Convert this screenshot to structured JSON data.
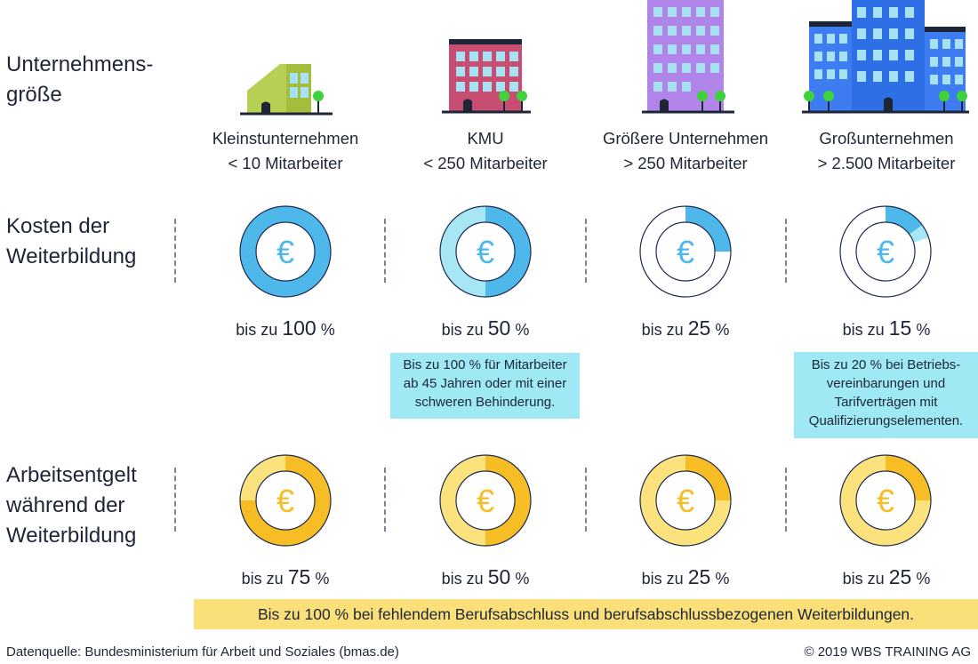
{
  "labels": {
    "size": "Unternehmens-\ngröße",
    "costs": "Kosten der\nWeiterbildung",
    "wage": "Arbeitsentgelt\nwährend der\nWeiterbildung"
  },
  "columns": [
    {
      "title": "Kleinstunternehmen",
      "subtitle": "< 10 Mitarbeiter",
      "icon": "small-building-icon"
    },
    {
      "title": "KMU",
      "subtitle": "< 250 Mitarbeiter",
      "icon": "medium-building-icon"
    },
    {
      "title": "Größere Unternehmen",
      "subtitle": "> 250 Mitarbeiter",
      "icon": "large-building-icon"
    },
    {
      "title": "Großunternehmen",
      "subtitle": "> 2.500 Mitarbeiter",
      "icon": "campus-buildings-icon"
    }
  ],
  "chart_data": [
    {
      "type": "pie",
      "title": "Kosten der Weiterbildung",
      "categories": [
        "Kleinstunternehmen",
        "KMU",
        "Größere Unternehmen",
        "Großunternehmen"
      ],
      "values": [
        100,
        50,
        25,
        15
      ],
      "extended_values": [
        100,
        100,
        25,
        20
      ],
      "unit": "%",
      "colors": {
        "fill": "#4fb8ea",
        "extended": "#a6e6f5",
        "empty": "#ffffff",
        "outline": "#1d2a50"
      }
    },
    {
      "type": "pie",
      "title": "Arbeitsentgelt während der Weiterbildung",
      "categories": [
        "Kleinstunternehmen",
        "KMU",
        "Größere Unternehmen",
        "Großunternehmen"
      ],
      "values": [
        75,
        50,
        25,
        25
      ],
      "extended_values": [
        100,
        100,
        100,
        100
      ],
      "unit": "%",
      "colors": {
        "fill": "#f6bd25",
        "extended": "#fbe27d",
        "outline": "#1d2a50"
      }
    }
  ],
  "costs_labels": [
    {
      "prefix": "bis zu",
      "value": "100",
      "unit": "%"
    },
    {
      "prefix": "bis zu",
      "value": "50",
      "unit": "%"
    },
    {
      "prefix": "bis zu",
      "value": "25",
      "unit": "%"
    },
    {
      "prefix": "bis zu",
      "value": "15",
      "unit": "%"
    }
  ],
  "wage_labels": [
    {
      "prefix": "bis zu",
      "value": "75",
      "unit": "%"
    },
    {
      "prefix": "bis zu",
      "value": "50",
      "unit": "%"
    },
    {
      "prefix": "bis zu",
      "value": "25",
      "unit": "%"
    },
    {
      "prefix": "bis zu",
      "value": "25",
      "unit": "%"
    }
  ],
  "euro_symbol": "€",
  "notes": {
    "kmu": "Bis zu 100 % für Mitarbeiter\nab 45 Jahren oder mit einer\nschweren Behinderung.",
    "gross": "Bis zu 20 % bei Betriebs-\nvereinbarungen und\nTarifverträgen mit\nQualifizierungselementen."
  },
  "banner": "Bis zu 100 % bei fehlendem Berufsabschluss und berufsabschlussbezogenen Weiterbildungen.",
  "footer": {
    "source": "Datenquelle: Bundesministerium für Arbeit und Soziales (bmas.de)",
    "copyright": "© 2019 WBS TRAINING AG"
  },
  "colors": {
    "text": "#1d2536",
    "note_bg": "#9ee9f3",
    "banner_bg": "#fbe07a"
  }
}
